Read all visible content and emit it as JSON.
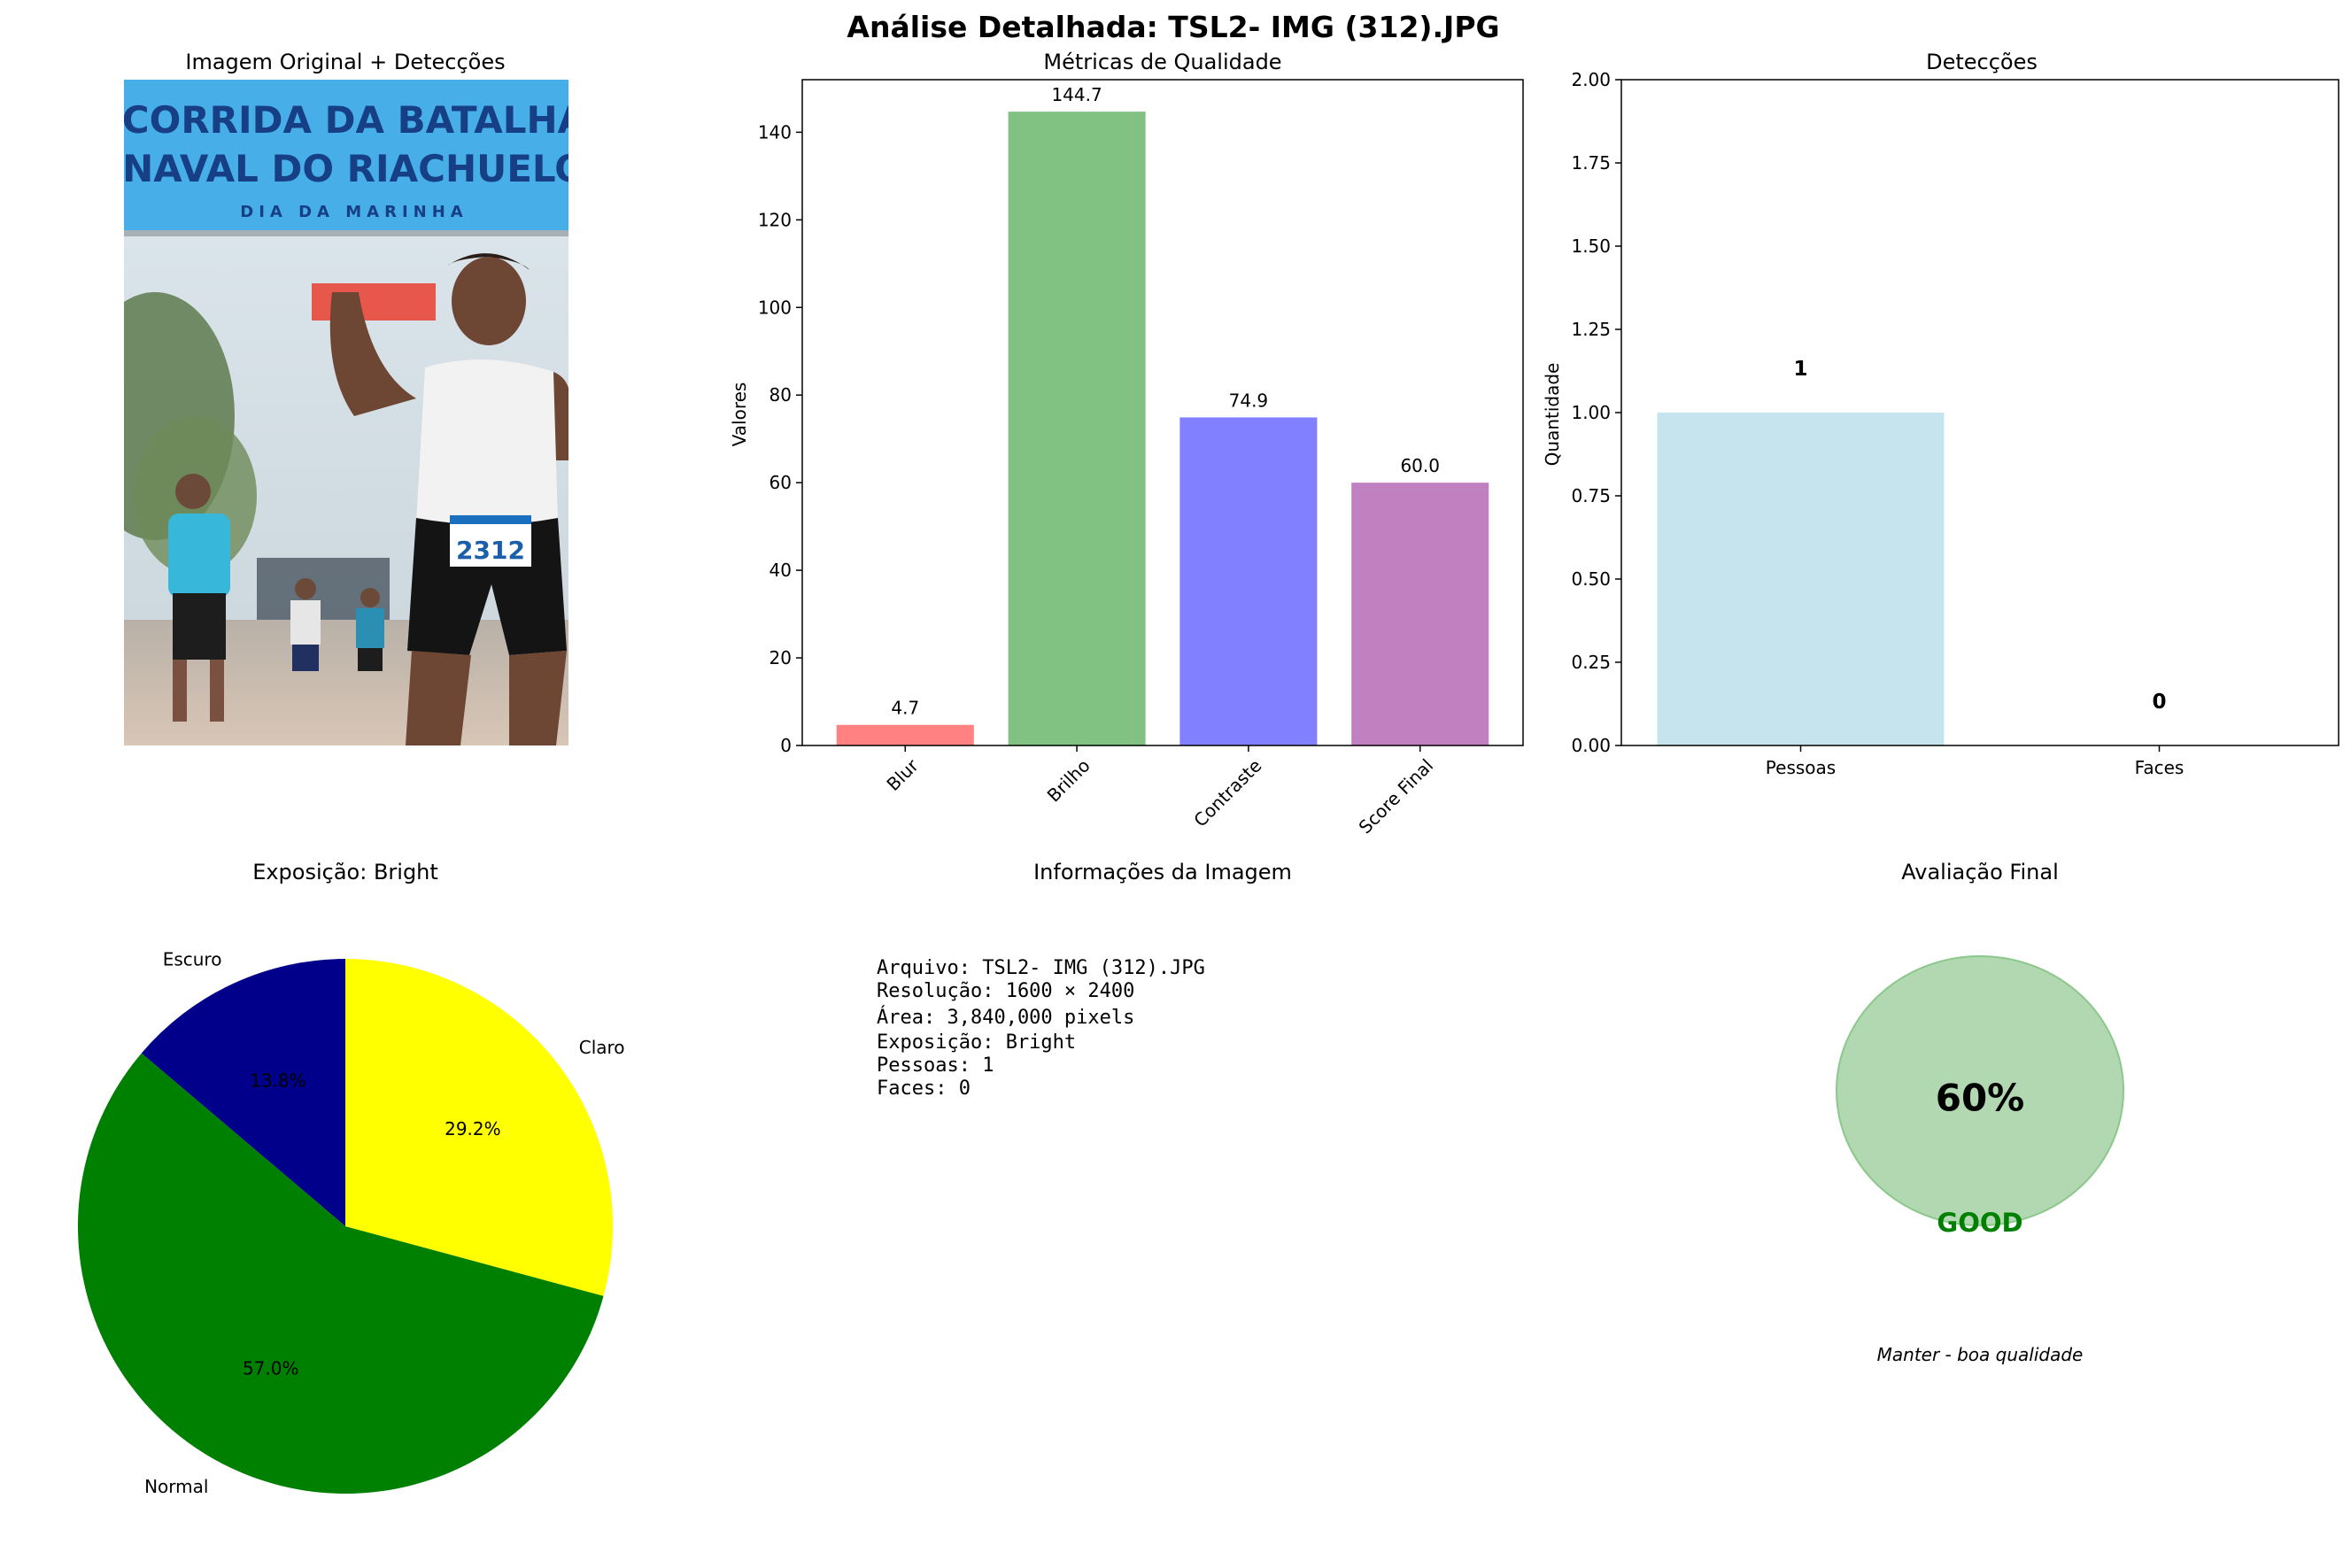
{
  "suptitle": "Análise Detalhada: TSL2- IMG  (312).JPG",
  "panels": {
    "image": {
      "title": "Imagem Original + Detecções",
      "banner_line1": "CORRIDA DA BATALHA",
      "banner_line2": "NAVAL DO RIACHUELO",
      "banner_line3": "DIA DA MARINHA",
      "bib_number": "2312"
    },
    "info": {
      "title": "Informações da Imagem",
      "lines": [
        "Arquivo: TSL2- IMG  (312).JPG",
        "Resolução: 1600 × 2400",
        "Área: 3,840,000 pixels",
        "Exposição: Bright",
        "Pessoas: 1",
        "Faces: 0"
      ]
    },
    "final": {
      "title": "Avaliação Final",
      "score": "60%",
      "rating": "GOOD",
      "recommendation": "Manter - boa qualidade",
      "circle_color": "#b2d8b2",
      "rating_color": "#008000"
    }
  },
  "chart_data": [
    {
      "type": "bar",
      "title": "Métricas de Qualidade",
      "ylabel": "Valores",
      "xlabel": "",
      "categories": [
        "Blur",
        "Brilho",
        "Contraste",
        "Score Final"
      ],
      "values": [
        4.7,
        144.7,
        74.9,
        60.0
      ],
      "value_labels": [
        "4.7",
        "144.7",
        "74.9",
        "60.0"
      ],
      "colors": [
        "#ff4b4b",
        "#4ca64c",
        "#4b4bff",
        "#a64ca6"
      ],
      "ylim": [
        0,
        152
      ],
      "yticks": [
        0,
        20,
        40,
        60,
        80,
        100,
        120,
        140
      ],
      "ytick_labels": [
        "0",
        "20",
        "40",
        "60",
        "80",
        "100",
        "120",
        "140"
      ],
      "grid": false
    },
    {
      "type": "bar",
      "title": "Detecções",
      "ylabel": "Quantidade",
      "xlabel": "",
      "categories": [
        "Pessoas",
        "Faces"
      ],
      "values": [
        1,
        0
      ],
      "value_labels": [
        "1",
        "0"
      ],
      "colors": [
        "#add8e6",
        "#ffb6c1"
      ],
      "ylim": [
        0,
        2
      ],
      "yticks": [
        0,
        0.25,
        0.5,
        0.75,
        1.0,
        1.25,
        1.5,
        1.75,
        2.0
      ],
      "ytick_labels": [
        "0.00",
        "0.25",
        "0.50",
        "0.75",
        "1.00",
        "1.25",
        "1.50",
        "1.75",
        "2.00"
      ],
      "grid": false
    },
    {
      "type": "pie",
      "title": "Exposição: Bright",
      "labels": [
        "Escuro",
        "Normal",
        "Claro"
      ],
      "values": [
        13.8,
        57.0,
        29.2
      ],
      "pct_labels": [
        "13.8%",
        "57.0%",
        "29.2%"
      ],
      "colors": [
        "#00008b",
        "#008000",
        "#ffff00"
      ],
      "start_angle_deg": 90,
      "direction": "counterclockwise"
    }
  ]
}
